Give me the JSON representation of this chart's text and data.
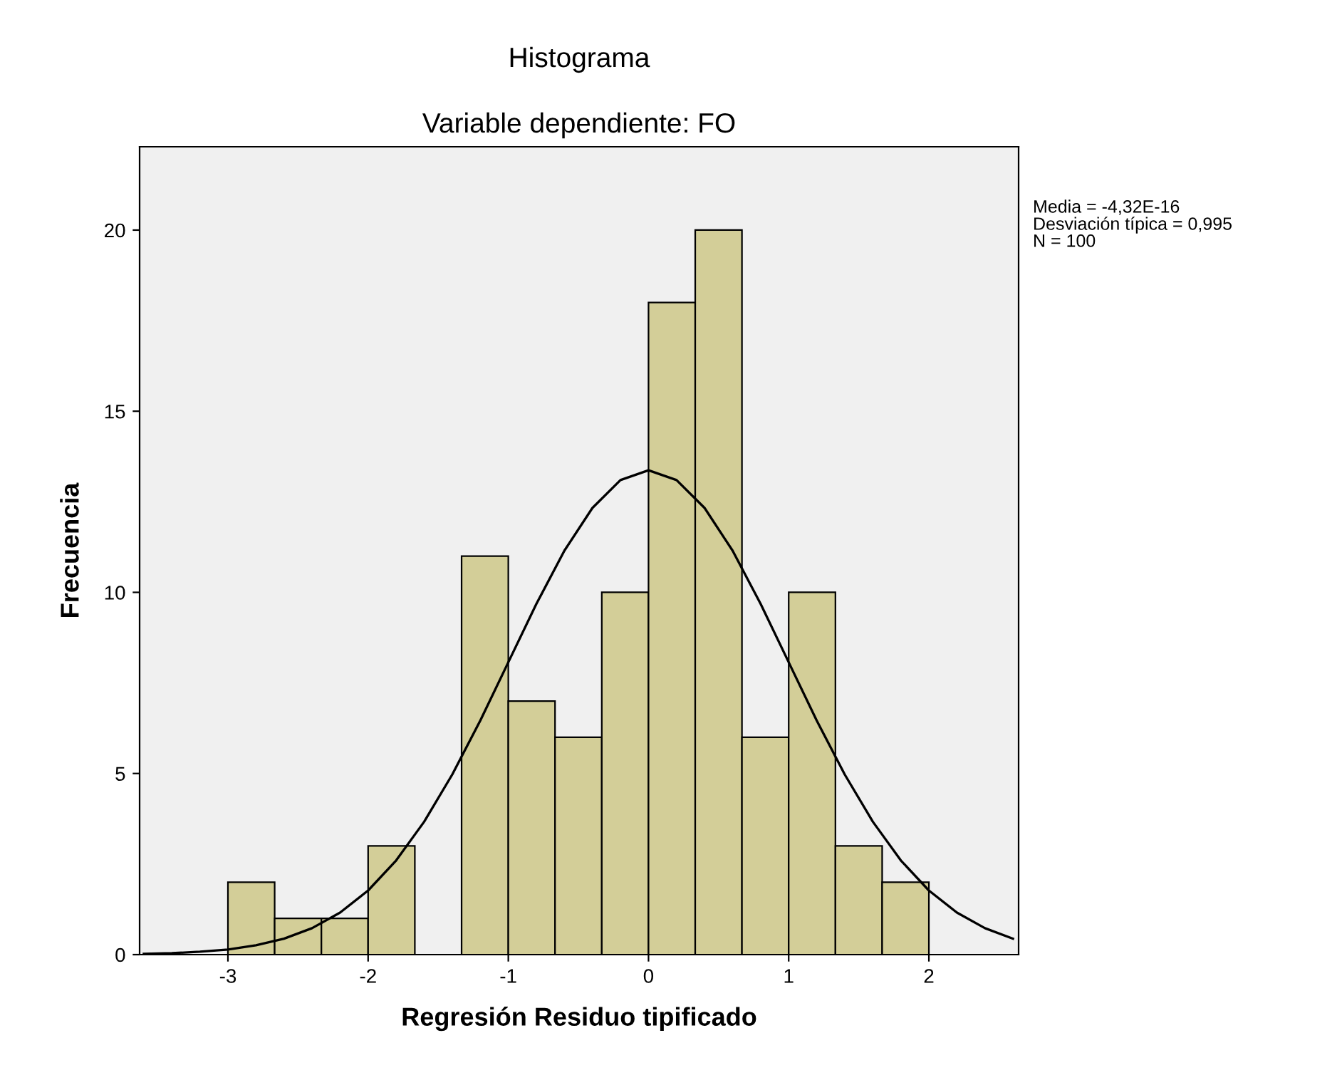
{
  "chart_data": {
    "type": "histogram",
    "title": "Histograma",
    "subtitle": "Variable dependiente: FO",
    "xlabel": "Regresión Residuo tipificado",
    "ylabel": "Frecuencia",
    "bins": [
      -3,
      -2.6667,
      -2.3333,
      -2,
      -1.6667,
      -1.3333,
      -1,
      -0.6667,
      -0.3333,
      0,
      0.3333,
      0.6667,
      1,
      1.3333,
      1.6667,
      2
    ],
    "values": [
      2,
      1,
      1,
      3,
      0,
      11,
      7,
      6,
      10,
      18,
      20,
      6,
      10,
      3,
      2
    ],
    "color": "#d3ce98",
    "series": [
      {
        "type": "line",
        "color": "#000000",
        "x": [
          -3.6,
          -3.4,
          -3.2,
          -3.0,
          -2.8,
          -2.6,
          -2.4,
          -2.2,
          -2.0,
          -1.8,
          -1.6,
          -1.4,
          -1.2,
          -1.0,
          -0.8,
          -0.6,
          -0.4,
          -0.2,
          0,
          0.2,
          0.4,
          0.6,
          0.8,
          1.0,
          1.2,
          1.4,
          1.6,
          1.8,
          2.0,
          2.2,
          2.4,
          2.6
        ],
        "values": [
          0.02,
          0.04,
          0.08,
          0.14,
          0.26,
          0.44,
          0.73,
          1.16,
          1.77,
          2.6,
          3.67,
          4.97,
          6.46,
          8.07,
          9.68,
          11.15,
          12.33,
          13.1,
          13.37,
          13.1,
          12.33,
          11.15,
          9.68,
          8.07,
          6.46,
          4.97,
          3.67,
          2.6,
          1.77,
          1.16,
          0.73,
          0.44
        ]
      }
    ],
    "xlim": [
      -3.63,
      2.64
    ],
    "ylim": [
      0,
      22.3
    ],
    "xticks": [
      -3,
      -2,
      -1,
      0,
      1,
      2
    ],
    "yticks": [
      0,
      5,
      10,
      15,
      20
    ],
    "grid": false,
    "annotations": [
      "Media = -4,32E-16",
      "Desviación típica = 0,995",
      "N = 100"
    ]
  }
}
